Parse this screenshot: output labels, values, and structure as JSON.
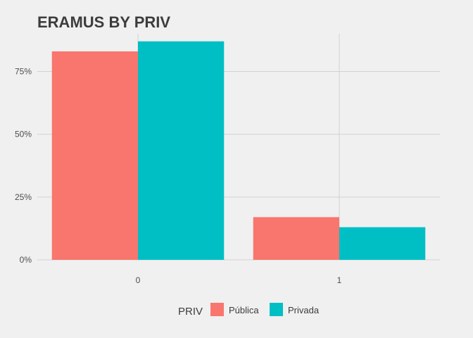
{
  "chart_data": {
    "type": "bar",
    "title": "ERAMUS BY PRIV",
    "xlabel": "",
    "ylabel": "",
    "categories": [
      "0",
      "1"
    ],
    "series": [
      {
        "name": "Pública",
        "values": [
          0.83,
          0.17
        ]
      },
      {
        "name": "Privada",
        "values": [
          0.87,
          0.13
        ]
      }
    ],
    "ylim": [
      0,
      0.9
    ],
    "yticks": [
      0,
      0.25,
      0.5,
      0.75
    ],
    "ytick_labels": [
      "0%",
      "25%",
      "50%",
      "75%"
    ],
    "legend": {
      "title": "PRIV",
      "position": "bottom"
    },
    "grid": true,
    "colors": [
      "#f8766d",
      "#00bfc4"
    ],
    "background": "#f0f0f0"
  }
}
